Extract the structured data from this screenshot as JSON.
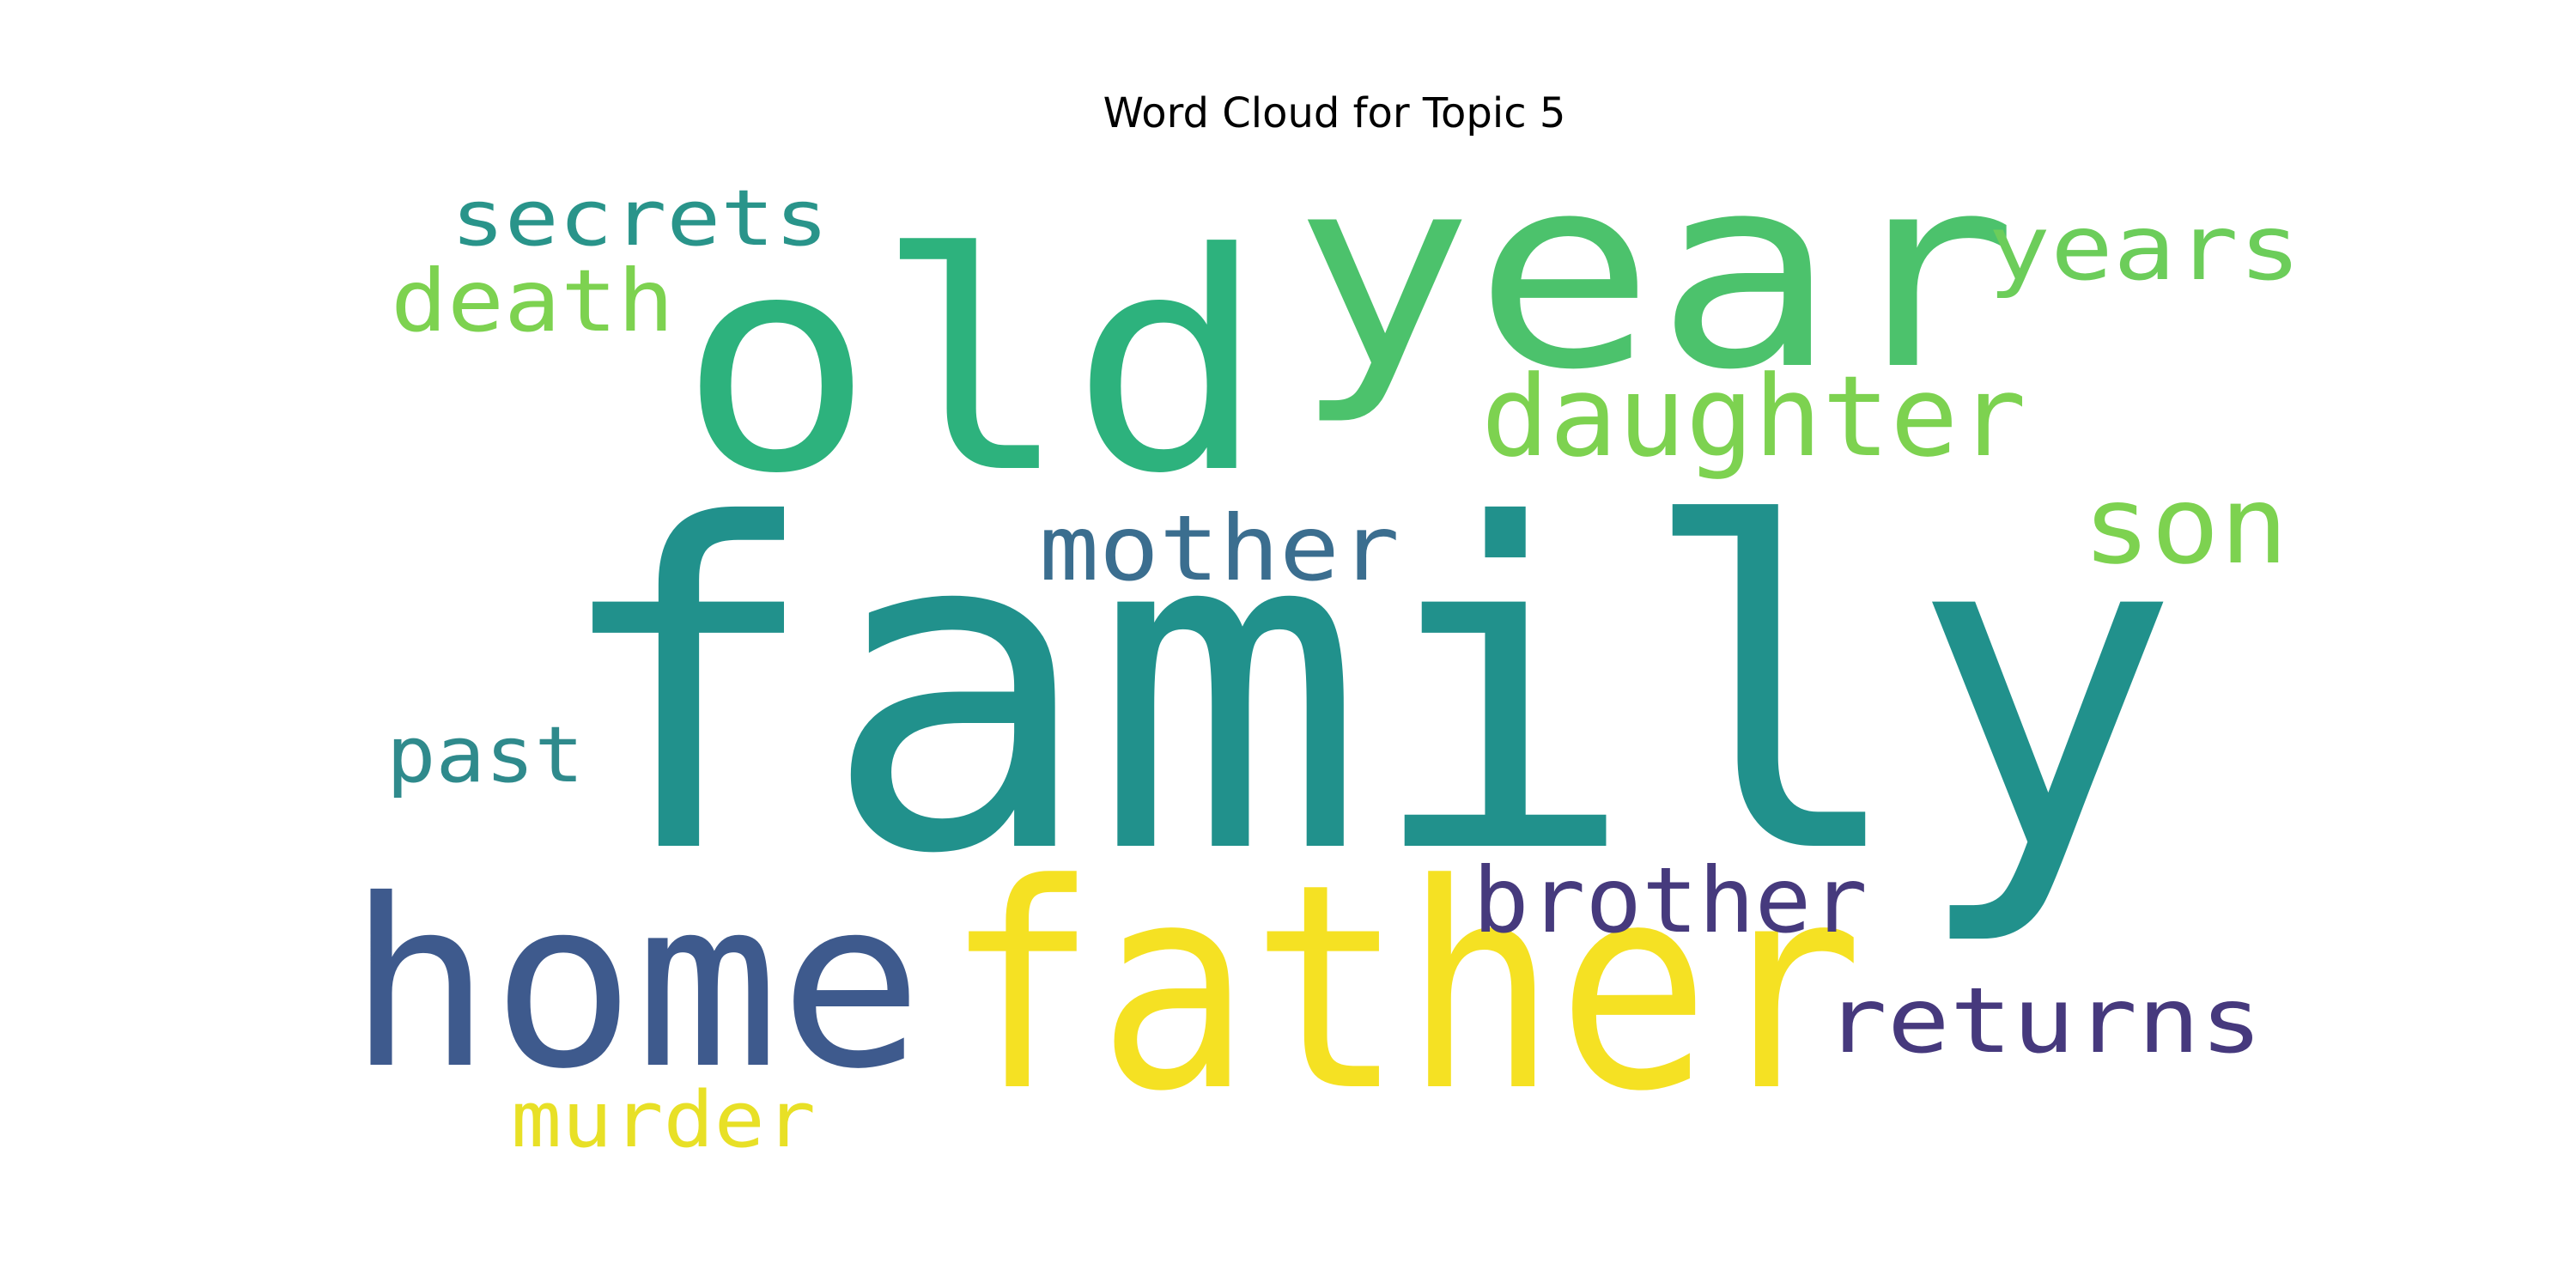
{
  "chart_data": {
    "type": "wordcloud",
    "title": "Word Cloud for Topic 5",
    "background": "#ffffff",
    "colormap": "viridis",
    "words": [
      {
        "text": "family",
        "color": "#21918c"
      },
      {
        "text": "father",
        "color": "#f5e123"
      },
      {
        "text": "home",
        "color": "#3e5a8d"
      },
      {
        "text": "old",
        "color": "#2db27d"
      },
      {
        "text": "year",
        "color": "#4cc26c"
      },
      {
        "text": "daughter",
        "color": "#7dd250"
      },
      {
        "text": "son",
        "color": "#7dd250"
      },
      {
        "text": "years",
        "color": "#6ccd5a"
      },
      {
        "text": "mother",
        "color": "#3b6e8f"
      },
      {
        "text": "brother",
        "color": "#463a7d"
      },
      {
        "text": "returns",
        "color": "#46397d"
      },
      {
        "text": "secrets",
        "color": "#29948a"
      },
      {
        "text": "death",
        "color": "#7dd250"
      },
      {
        "text": "past",
        "color": "#2f8a8c"
      },
      {
        "text": "murder",
        "color": "#e8e026"
      }
    ]
  }
}
